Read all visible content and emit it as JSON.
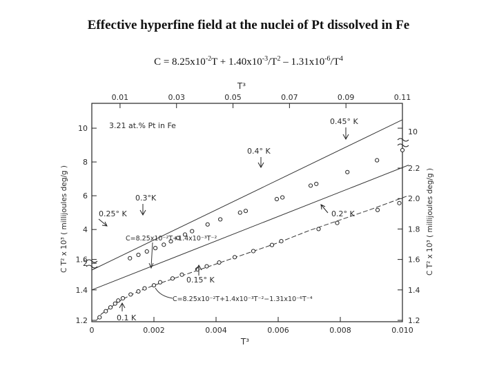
{
  "page": {
    "title": "Effective hyperfine field at the nuclei of Pt dissolved in Fe",
    "formula": {
      "p1": "C = 8.25x10",
      "e1": "-2",
      "p2": "T + 1.40x10",
      "e2": "-3",
      "p3": "/T",
      "e3": "2",
      "p4": " – 1.31x10",
      "e4": "-6",
      "p5": "/T",
      "e5": "4"
    }
  },
  "chart_data": {
    "type": "scatter",
    "annotation_sample": "3.21 at.% Pt in Fe",
    "top_axis": {
      "label": "T³",
      "ticks": [
        0.01,
        0.03,
        0.05,
        0.07,
        0.09,
        0.11
      ],
      "tick_labels": [
        "0.01",
        "0.03",
        "0.05",
        "0.07",
        "0.09",
        "0.11"
      ],
      "range": [
        0,
        0.11
      ]
    },
    "bottom_axis": {
      "label": "T³",
      "ticks": [
        0,
        0.002,
        0.004,
        0.006,
        0.008,
        0.01
      ],
      "tick_labels": [
        "0",
        "0.002",
        "0.004",
        "0.006",
        "0.008",
        "0.010"
      ],
      "range": [
        0,
        0.01
      ]
    },
    "left_axis_upper": {
      "label": "C T² x 10³  ( millijoules  deg/g )",
      "ticks": [
        2,
        4,
        6,
        8,
        10
      ],
      "tick_labels": [
        "2",
        "4",
        "6",
        "8",
        "10"
      ],
      "range": [
        1.6,
        10.9
      ]
    },
    "left_axis_lower": {
      "ticks": [
        1.2,
        1.4,
        1.6
      ],
      "tick_labels": [
        "1.2",
        "1.4",
        "1.6"
      ],
      "range": [
        1.2,
        2.25
      ]
    },
    "right_axis_upper": {
      "ticks": [
        10
      ],
      "tick_labels": [
        "10"
      ]
    },
    "right_axis_lower": {
      "label": "C T² x 10³  ( millijoules  deg/g )",
      "ticks": [
        1.2,
        1.4,
        1.6,
        1.8,
        2.0,
        2.2
      ],
      "tick_labels": [
        "1.2",
        "1.4",
        "1.6",
        "1.8",
        "2.0",
        "2.2"
      ],
      "range": [
        1.2,
        2.25
      ]
    },
    "series": [
      {
        "role": "upper data (top T³ scale, upper left axis)",
        "x": [
          0.0135,
          0.0165,
          0.0195,
          0.0225,
          0.0255,
          0.028,
          0.0305,
          0.033,
          0.0355,
          0.041,
          0.0455,
          0.0525,
          0.0545,
          0.0655,
          0.0675,
          0.0775,
          0.0795,
          0.0905,
          0.101,
          0.11
        ],
        "y": [
          2.3,
          2.5,
          2.7,
          2.9,
          3.1,
          3.3,
          3.5,
          3.7,
          3.9,
          4.3,
          4.6,
          5.0,
          5.1,
          5.8,
          5.9,
          6.6,
          6.7,
          7.4,
          8.1,
          8.7
        ]
      },
      {
        "role": "lower data (bottom T³ scale, lower axis)",
        "x": [
          0.00025,
          0.00045,
          0.0006,
          0.00075,
          0.00085,
          0.001,
          0.00125,
          0.0015,
          0.0017,
          0.002,
          0.0022,
          0.0026,
          0.0029,
          0.0034,
          0.0037,
          0.0041,
          0.0046,
          0.0052,
          0.0058,
          0.0061,
          0.0073,
          0.0079,
          0.0092,
          0.0099
        ],
        "y": [
          1.22,
          1.26,
          1.285,
          1.31,
          1.33,
          1.345,
          1.37,
          1.39,
          1.41,
          1.43,
          1.45,
          1.475,
          1.5,
          1.535,
          1.555,
          1.58,
          1.615,
          1.655,
          1.695,
          1.72,
          1.8,
          1.84,
          1.925,
          1.97
        ]
      }
    ],
    "lines": [
      {
        "label": "upper fit",
        "x": [
          0,
          0.11
        ],
        "y": [
          1.6,
          10.5
        ]
      },
      {
        "label": "C=8.25x10⁻²T+1.4x10⁻³T⁻²",
        "x": [
          0,
          0.0102
        ],
        "y": [
          1.4,
          2.22
        ]
      },
      {
        "label": "C=8.25x10⁻²T+1.4x10⁻³T⁻²−1.31x10⁻⁶T⁻⁴",
        "x": [
          0.00015,
          0.0003,
          0.0006,
          0.001,
          0.0015,
          0.002,
          0.003,
          0.004,
          0.005,
          0.006,
          0.007,
          0.008,
          0.009,
          0.0102
        ],
        "y": [
          1.2,
          1.24,
          1.285,
          1.34,
          1.39,
          1.43,
          1.5,
          1.57,
          1.64,
          1.71,
          1.79,
          1.86,
          1.93,
          2.02
        ]
      }
    ],
    "temperature_labels": [
      {
        "text": "0.45° K"
      },
      {
        "text": "0.4° K"
      },
      {
        "text": "0.3°K"
      },
      {
        "text": "0.25° K"
      },
      {
        "text": "0.2° K"
      },
      {
        "text": "0.15° K"
      },
      {
        "text": "0.1 K"
      }
    ],
    "grid": false
  }
}
